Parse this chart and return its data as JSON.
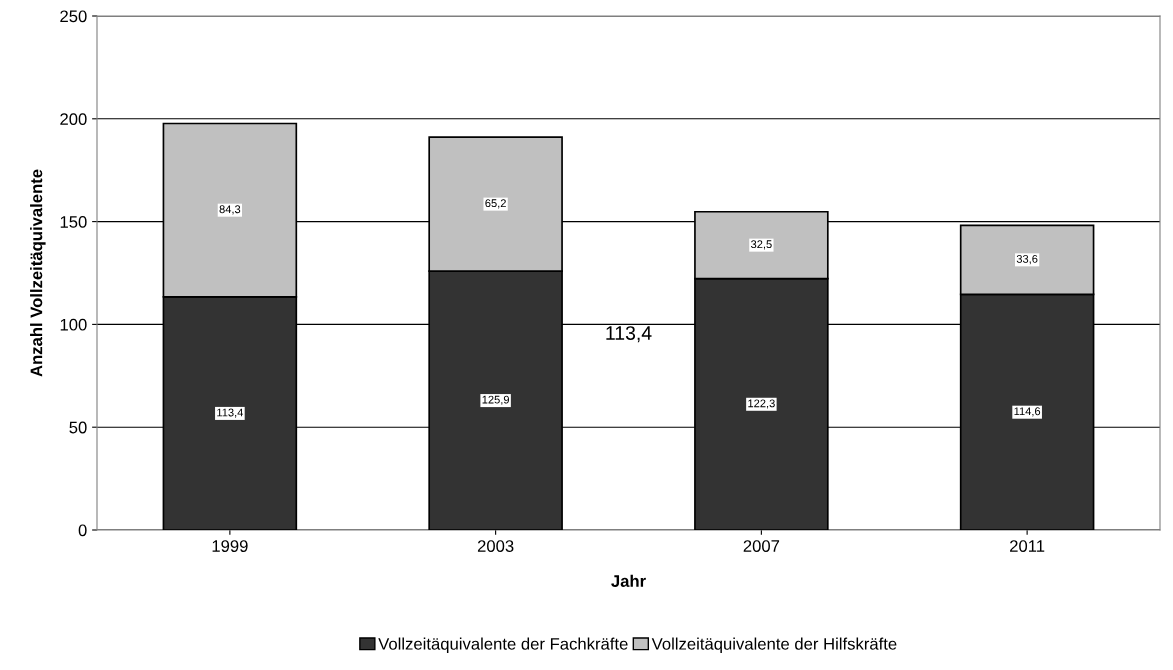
{
  "chart_data": {
    "type": "bar",
    "stacked": true,
    "xlabel": "Jahr",
    "ylabel": "Anzahl Vollzeitäquivalente",
    "categories": [
      "1999",
      "2003",
      "2007",
      "2011"
    ],
    "series": [
      {
        "name": "Vollzeitäquivalente der Fachkräfte",
        "color": "#333333",
        "values": [
          113.4,
          125.9,
          122.3,
          114.6
        ],
        "value_labels": [
          "113,4",
          "125,9",
          "122,3",
          "114,6"
        ]
      },
      {
        "name": "Vollzeitäquivalente der Hilfskräfte",
        "color": "#c0c0c0",
        "values": [
          84.3,
          65.2,
          32.5,
          33.6
        ],
        "value_labels": [
          "84,3",
          "65,2",
          "32,5",
          "33,6"
        ]
      }
    ],
    "ylim": [
      0,
      250
    ],
    "yticks": [
      0,
      50,
      100,
      150,
      200,
      250
    ],
    "grid": "y",
    "legend": "bottom",
    "annotations": [
      "113,4"
    ]
  }
}
